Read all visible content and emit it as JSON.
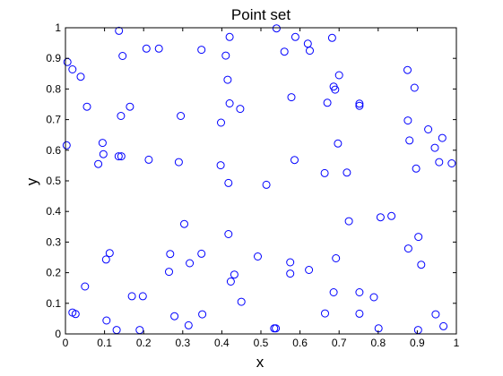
{
  "chart_data": {
    "type": "scatter",
    "title": "Point set",
    "xlabel": "x",
    "ylabel": "y",
    "xlim": [
      0,
      1
    ],
    "ylim": [
      0,
      1
    ],
    "xticks": [
      "0",
      "0.1",
      "0.2",
      "0.3",
      "0.4",
      "0.5",
      "0.6",
      "0.7",
      "0.8",
      "0.9",
      "1"
    ],
    "yticks": [
      "0",
      "0.1",
      "0.2",
      "0.3",
      "0.4",
      "0.5",
      "0.6",
      "0.7",
      "0.8",
      "0.9",
      "1"
    ],
    "grid": false,
    "marker": "circle-open",
    "color": "#0000ff",
    "points": [
      [
        0.137,
        0.99
      ],
      [
        0.207,
        0.932
      ],
      [
        0.239,
        0.932
      ],
      [
        0.348,
        0.928
      ],
      [
        0.42,
        0.97
      ],
      [
        0.54,
        0.998
      ],
      [
        0.56,
        0.922
      ],
      [
        0.588,
        0.97
      ],
      [
        0.62,
        0.948
      ],
      [
        0.625,
        0.925
      ],
      [
        0.682,
        0.967
      ],
      [
        0.005,
        0.888
      ],
      [
        0.018,
        0.864
      ],
      [
        0.039,
        0.84
      ],
      [
        0.146,
        0.908
      ],
      [
        0.41,
        0.909
      ],
      [
        0.875,
        0.862
      ],
      [
        0.7,
        0.845
      ],
      [
        0.686,
        0.808
      ],
      [
        0.69,
        0.798
      ],
      [
        0.893,
        0.804
      ],
      [
        0.415,
        0.83
      ],
      [
        0.578,
        0.773
      ],
      [
        0.055,
        0.742
      ],
      [
        0.165,
        0.742
      ],
      [
        0.42,
        0.753
      ],
      [
        0.447,
        0.735
      ],
      [
        0.67,
        0.755
      ],
      [
        0.752,
        0.752
      ],
      [
        0.752,
        0.745
      ],
      [
        0.142,
        0.712
      ],
      [
        0.295,
        0.712
      ],
      [
        0.398,
        0.69
      ],
      [
        0.876,
        0.697
      ],
      [
        0.928,
        0.668
      ],
      [
        0.095,
        0.624
      ],
      [
        0.003,
        0.616
      ],
      [
        0.097,
        0.587
      ],
      [
        0.136,
        0.58
      ],
      [
        0.143,
        0.58
      ],
      [
        0.697,
        0.622
      ],
      [
        0.88,
        0.632
      ],
      [
        0.945,
        0.608
      ],
      [
        0.964,
        0.64
      ],
      [
        0.084,
        0.555
      ],
      [
        0.213,
        0.569
      ],
      [
        0.29,
        0.561
      ],
      [
        0.397,
        0.551
      ],
      [
        0.586,
        0.568
      ],
      [
        0.956,
        0.561
      ],
      [
        0.988,
        0.557
      ],
      [
        0.897,
        0.54
      ],
      [
        0.663,
        0.525
      ],
      [
        0.72,
        0.527
      ],
      [
        0.417,
        0.493
      ],
      [
        0.514,
        0.487
      ],
      [
        0.806,
        0.381
      ],
      [
        0.834,
        0.385
      ],
      [
        0.725,
        0.368
      ],
      [
        0.304,
        0.359
      ],
      [
        0.417,
        0.326
      ],
      [
        0.903,
        0.317
      ],
      [
        0.877,
        0.279
      ],
      [
        0.268,
        0.261
      ],
      [
        0.348,
        0.262
      ],
      [
        0.113,
        0.264
      ],
      [
        0.104,
        0.243
      ],
      [
        0.318,
        0.231
      ],
      [
        0.492,
        0.253
      ],
      [
        0.575,
        0.234
      ],
      [
        0.692,
        0.247
      ],
      [
        0.91,
        0.226
      ],
      [
        0.265,
        0.203
      ],
      [
        0.432,
        0.194
      ],
      [
        0.575,
        0.197
      ],
      [
        0.623,
        0.209
      ],
      [
        0.423,
        0.171
      ],
      [
        0.05,
        0.155
      ],
      [
        0.17,
        0.123
      ],
      [
        0.198,
        0.123
      ],
      [
        0.686,
        0.136
      ],
      [
        0.752,
        0.136
      ],
      [
        0.789,
        0.12
      ],
      [
        0.45,
        0.105
      ],
      [
        0.018,
        0.07
      ],
      [
        0.026,
        0.065
      ],
      [
        0.279,
        0.058
      ],
      [
        0.35,
        0.064
      ],
      [
        0.664,
        0.067
      ],
      [
        0.752,
        0.066
      ],
      [
        0.947,
        0.064
      ],
      [
        0.105,
        0.044
      ],
      [
        0.315,
        0.028
      ],
      [
        0.131,
        0.013
      ],
      [
        0.19,
        0.013
      ],
      [
        0.534,
        0.018
      ],
      [
        0.538,
        0.018
      ],
      [
        0.801,
        0.018
      ],
      [
        0.902,
        0.013
      ],
      [
        0.967,
        0.025
      ]
    ]
  }
}
